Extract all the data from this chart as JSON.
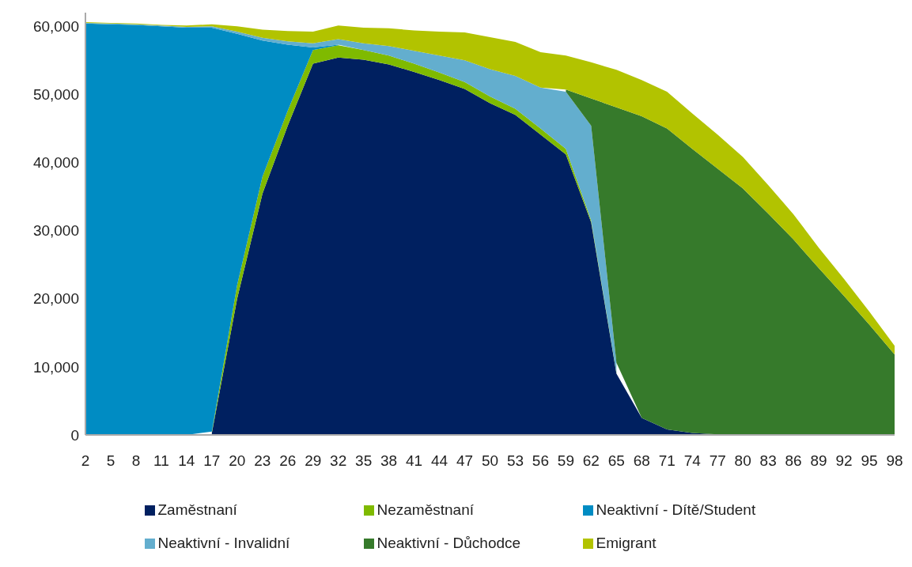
{
  "chart_data": {
    "type": "area",
    "stacked": true,
    "categories": [
      "2",
      "5",
      "8",
      "11",
      "14",
      "17",
      "20",
      "23",
      "26",
      "29",
      "32",
      "35",
      "38",
      "41",
      "44",
      "47",
      "50",
      "53",
      "56",
      "59",
      "62",
      "65",
      "68",
      "71",
      "74",
      "77",
      "80",
      "83",
      "86",
      "89",
      "92",
      "95",
      "98"
    ],
    "series": [
      {
        "name": "Zaměstnaní",
        "color": "#002060",
        "values": [
          null,
          null,
          null,
          null,
          null,
          300,
          20000,
          35400,
          45400,
          54500,
          55400,
          55100,
          54400,
          53300,
          52100,
          50800,
          48700,
          47000,
          44100,
          41200,
          31200,
          9000,
          2500,
          800,
          300,
          100,
          null,
          null,
          null,
          null,
          null,
          null,
          null
        ]
      },
      {
        "name": "Nezaměstnaní",
        "color": "#7fba00",
        "values": [
          null,
          null,
          null,
          null,
          null,
          200,
          2000,
          2500,
          2200,
          2000,
          1800,
          1400,
          1300,
          1200,
          1100,
          1000,
          1000,
          900,
          900,
          800,
          300,
          100,
          null,
          null,
          null,
          null,
          null,
          null,
          null,
          null,
          null,
          null,
          null
        ]
      },
      {
        "name": "Neaktivní - Dítě/Student",
        "color": "#008cc3",
        "values": [
          60400,
          60300,
          60200,
          60000,
          59800,
          59300,
          36900,
          20000,
          9700,
          400,
          100,
          null,
          null,
          null,
          null,
          null,
          null,
          null,
          null,
          null,
          null,
          null,
          null,
          null,
          null,
          null,
          null,
          null,
          null,
          null,
          null,
          null,
          null
        ]
      },
      {
        "name": "Neaktivní - Invalidní",
        "color": "#63aece",
        "values": [
          100,
          100,
          100,
          100,
          100,
          200,
          300,
          400,
          500,
          600,
          800,
          1000,
          1400,
          1900,
          2500,
          3200,
          4000,
          4800,
          6000,
          8400,
          13900,
          1500,
          null,
          null,
          null,
          null,
          null,
          null,
          null,
          null,
          null,
          null,
          null
        ]
      },
      {
        "name": "Neaktivní - Důchodce",
        "color": "#367a2b",
        "values": [
          null,
          null,
          null,
          null,
          null,
          null,
          null,
          null,
          null,
          null,
          null,
          null,
          null,
          null,
          null,
          null,
          null,
          null,
          null,
          300,
          4000,
          37500,
          44300,
          44200,
          41700,
          39000,
          36200,
          32500,
          28700,
          24500,
          20400,
          16200,
          11800
        ]
      },
      {
        "name": "Emigrant",
        "color": "#b2c300",
        "values": [
          100,
          100,
          100,
          100,
          200,
          300,
          800,
          1200,
          1500,
          1700,
          2000,
          2300,
          2600,
          3000,
          3500,
          4100,
          4700,
          5000,
          5200,
          5000,
          5300,
          5500,
          5300,
          5400,
          5200,
          5000,
          4600,
          4200,
          3700,
          3000,
          2500,
          1900,
          1300
        ]
      }
    ],
    "ylim": [
      0,
      62000
    ],
    "yticks": [
      {
        "value": 0,
        "label": "0"
      },
      {
        "value": 10000,
        "label": "10,000"
      },
      {
        "value": 20000,
        "label": "20,000"
      },
      {
        "value": 30000,
        "label": "30,000"
      },
      {
        "value": 40000,
        "label": "40,000"
      },
      {
        "value": 50000,
        "label": "50,000"
      },
      {
        "value": 60000,
        "label": "60,000"
      }
    ],
    "legend": "bottom",
    "marker": "none"
  }
}
